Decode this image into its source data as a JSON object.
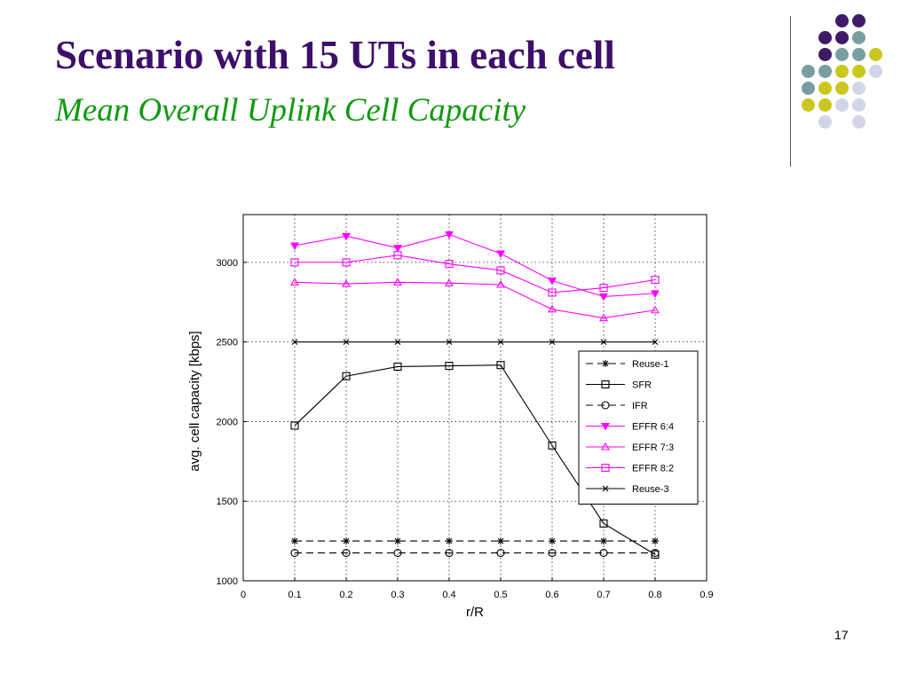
{
  "slide": {
    "title": "Scenario with 15 UTs in each cell",
    "subtitle": "Mean Overall Uplink Cell Capacity",
    "page_number": "17"
  },
  "decor": {
    "dots": [
      {
        "row": 0,
        "col": 2,
        "color": "#3f1a66"
      },
      {
        "row": 0,
        "col": 3,
        "color": "#3f1a66"
      },
      {
        "row": 1,
        "col": 1,
        "color": "#3f1a66"
      },
      {
        "row": 1,
        "col": 2,
        "color": "#3f1a66"
      },
      {
        "row": 1,
        "col": 3,
        "color": "#7a9ea0"
      },
      {
        "row": 2,
        "col": 1,
        "color": "#3f1a66"
      },
      {
        "row": 2,
        "col": 2,
        "color": "#7a9ea0"
      },
      {
        "row": 2,
        "col": 3,
        "color": "#7a9ea0"
      },
      {
        "row": 2,
        "col": 4,
        "color": "#c8c821"
      },
      {
        "row": 3,
        "col": 0,
        "color": "#7a9ea0"
      },
      {
        "row": 3,
        "col": 1,
        "color": "#7a9ea0"
      },
      {
        "row": 3,
        "col": 2,
        "color": "#c8c821"
      },
      {
        "row": 3,
        "col": 3,
        "color": "#c8c821"
      },
      {
        "row": 3,
        "col": 4,
        "color": "#d4d4e8"
      },
      {
        "row": 4,
        "col": 0,
        "color": "#7a9ea0"
      },
      {
        "row": 4,
        "col": 1,
        "color": "#c8c821"
      },
      {
        "row": 4,
        "col": 2,
        "color": "#c8c821"
      },
      {
        "row": 4,
        "col": 3,
        "color": "#d4d4e8"
      },
      {
        "row": 5,
        "col": 0,
        "color": "#c8c821"
      },
      {
        "row": 5,
        "col": 1,
        "color": "#c8c821"
      },
      {
        "row": 5,
        "col": 2,
        "color": "#d4d4e8"
      },
      {
        "row": 5,
        "col": 3,
        "color": "#d4d4e8"
      },
      {
        "row": 6,
        "col": 1,
        "color": "#d4d4e8"
      },
      {
        "row": 6,
        "col": 3,
        "color": "#d4d4e8"
      }
    ]
  },
  "chart_data": {
    "type": "line",
    "xlabel": "r/R",
    "ylabel": "avg. cell capacity [kbps]",
    "xlim": [
      0,
      0.9
    ],
    "ylim": [
      1000,
      3300
    ],
    "xticks": [
      0,
      0.1,
      0.2,
      0.3,
      0.4,
      0.5,
      0.6,
      0.7,
      0.8,
      0.9
    ],
    "xtick_labels": [
      "0",
      "0.1",
      "0.2",
      "0.3",
      "0.4",
      "0.5",
      "0.6",
      "0.7",
      "0.8",
      "0.9"
    ],
    "yticks": [
      1000,
      1500,
      2000,
      2500,
      3000
    ],
    "ytick_labels": [
      "1000",
      "1500",
      "2000",
      "2500",
      "3000"
    ],
    "grid": true,
    "legend_position": "center-right",
    "x": [
      0.1,
      0.2,
      0.3,
      0.4,
      0.5,
      0.6,
      0.7,
      0.8
    ],
    "series": [
      {
        "name": "Reuse-1",
        "color": "#000000",
        "dash": true,
        "marker": "star",
        "values": [
          1250,
          1250,
          1250,
          1250,
          1250,
          1250,
          1250,
          1250
        ]
      },
      {
        "name": "SFR",
        "color": "#000000",
        "dash": false,
        "marker": "square",
        "values": [
          1975,
          2285,
          2345,
          2350,
          2355,
          1850,
          1360,
          1165
        ]
      },
      {
        "name": "IFR",
        "color": "#000000",
        "dash": true,
        "marker": "circle",
        "values": [
          1175,
          1175,
          1175,
          1175,
          1175,
          1175,
          1175,
          1175
        ]
      },
      {
        "name": "EFFR 6:4",
        "color": "#ff00ff",
        "dash": false,
        "marker": "triangle-down",
        "values": [
          3105,
          3165,
          3090,
          3175,
          3055,
          2885,
          2785,
          2805
        ]
      },
      {
        "name": "EFFR 7:3",
        "color": "#ff00ff",
        "dash": false,
        "marker": "triangle-up",
        "values": [
          2875,
          2865,
          2875,
          2870,
          2860,
          2705,
          2650,
          2700
        ]
      },
      {
        "name": "EFFR 8:2",
        "color": "#ff00ff",
        "dash": false,
        "marker": "square",
        "values": [
          3000,
          3000,
          3045,
          2990,
          2950,
          2810,
          2840,
          2890
        ]
      },
      {
        "name": "Reuse-3",
        "color": "#000000",
        "dash": false,
        "marker": "x",
        "values": [
          2500,
          2500,
          2500,
          2500,
          2500,
          2500,
          2500,
          2500
        ]
      }
    ]
  }
}
